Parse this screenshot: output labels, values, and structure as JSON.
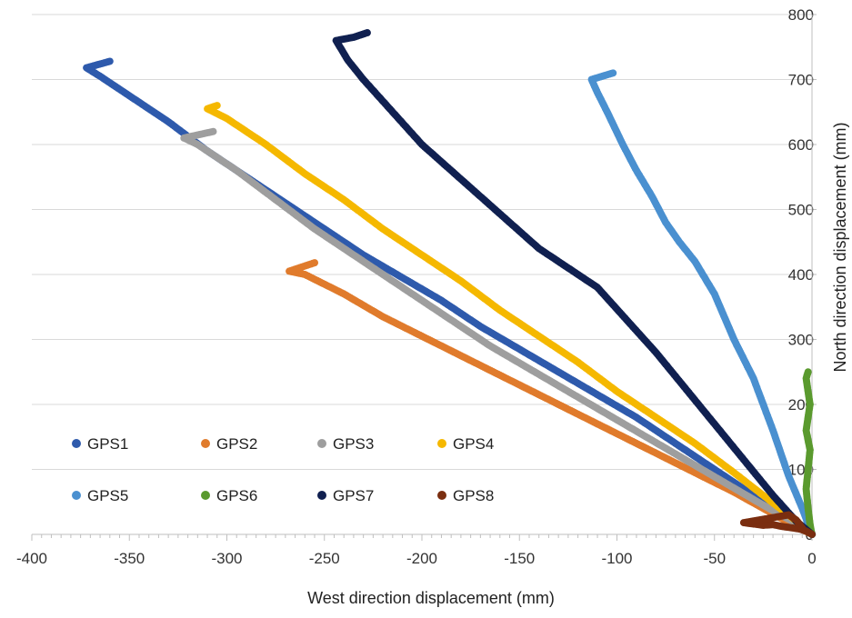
{
  "chart_data": {
    "type": "scatter",
    "xlabel": "West direction displacement (mm)",
    "ylabel": "North direction displacement (mm)",
    "xlim": [
      -400,
      0
    ],
    "ylim": [
      0,
      800
    ],
    "x_ticks": [
      -400,
      -350,
      -300,
      -250,
      -200,
      -150,
      -100,
      -50,
      0
    ],
    "y_ticks": [
      0,
      100,
      200,
      300,
      400,
      500,
      600,
      700,
      800
    ],
    "x_tick_labels": [
      "-400",
      "-350",
      "-300",
      "-250",
      "-200",
      "-150",
      "-100",
      "-50",
      "0"
    ],
    "y_tick_labels": [
      "0",
      "100",
      "200",
      "300",
      "400",
      "500",
      "600",
      "700",
      "800"
    ],
    "y_axis_position": "right",
    "grid": "horizontal",
    "legend_position": "lower-left, inside plot",
    "series": [
      {
        "name": "GPS1",
        "color": "#2E5AAC",
        "x": [
          0,
          -10,
          -20,
          -35,
          -50,
          -70,
          -90,
          -110,
          -130,
          -150,
          -170,
          -190,
          -210,
          -230,
          -250,
          -270,
          -290,
          -310,
          -330,
          -350,
          -365,
          -372,
          -360
        ],
        "y": [
          0,
          20,
          40,
          70,
          100,
          140,
          180,
          215,
          250,
          285,
          320,
          360,
          395,
          430,
          470,
          510,
          550,
          590,
          635,
          675,
          705,
          718,
          728
        ]
      },
      {
        "name": "GPS2",
        "color": "#E07B2C",
        "x": [
          0,
          -10,
          -25,
          -40,
          -60,
          -80,
          -100,
          -120,
          -140,
          -160,
          -180,
          -200,
          -220,
          -240,
          -260,
          -268,
          -255
        ],
        "y": [
          0,
          15,
          40,
          65,
          95,
          125,
          155,
          185,
          215,
          245,
          275,
          305,
          335,
          370,
          400,
          405,
          418
        ]
      },
      {
        "name": "GPS3",
        "color": "#9E9E9E",
        "x": [
          0,
          -10,
          -25,
          -45,
          -65,
          -85,
          -105,
          -125,
          -145,
          -165,
          -180,
          -195,
          -215,
          -235,
          -255,
          -275,
          -295,
          -315,
          -322,
          -307
        ],
        "y": [
          0,
          20,
          45,
          80,
          115,
          150,
          185,
          220,
          255,
          290,
          320,
          350,
          390,
          430,
          470,
          515,
          560,
          600,
          610,
          620
        ]
      },
      {
        "name": "GPS4",
        "color": "#F5B800",
        "x": [
          0,
          -10,
          -25,
          -40,
          -60,
          -80,
          -100,
          -120,
          -140,
          -160,
          -180,
          -200,
          -220,
          -240,
          -260,
          -280,
          -300,
          -310,
          -305
        ],
        "y": [
          0,
          25,
          60,
          95,
          140,
          180,
          220,
          265,
          305,
          345,
          390,
          430,
          470,
          515,
          555,
          600,
          640,
          655,
          660
        ]
      },
      {
        "name": "GPS5",
        "color": "#4A90D0",
        "x": [
          0,
          -5,
          -12,
          -20,
          -30,
          -40,
          -50,
          -60,
          -68,
          -75,
          -82,
          -90,
          -97,
          -105,
          -110,
          -113,
          -102
        ],
        "y": [
          0,
          40,
          90,
          160,
          240,
          300,
          370,
          420,
          450,
          480,
          520,
          560,
          600,
          650,
          680,
          700,
          710
        ]
      },
      {
        "name": "GPS6",
        "color": "#5A9A2E",
        "x": [
          0,
          -1,
          -2,
          -3,
          -2,
          -1,
          -3,
          -2,
          -1,
          -2,
          -3,
          -2
        ],
        "y": [
          0,
          15,
          40,
          70,
          100,
          130,
          160,
          180,
          200,
          220,
          240,
          250
        ]
      },
      {
        "name": "GPS7",
        "color": "#102050",
        "x": [
          0,
          -8,
          -20,
          -35,
          -50,
          -65,
          -80,
          -95,
          -110,
          -125,
          -140,
          -155,
          -170,
          -185,
          -200,
          -215,
          -230,
          -238,
          -244,
          -235,
          -228
        ],
        "y": [
          0,
          20,
          60,
          115,
          170,
          225,
          280,
          330,
          380,
          410,
          440,
          480,
          520,
          560,
          600,
          650,
          700,
          730,
          760,
          765,
          772
        ]
      },
      {
        "name": "GPS8",
        "color": "#7A2E10",
        "x": [
          0,
          -3,
          -6,
          -10,
          -15,
          -20,
          -25,
          -30,
          -35,
          -12,
          -8,
          -5
        ],
        "y": [
          0,
          5,
          8,
          10,
          12,
          15,
          14,
          16,
          18,
          30,
          22,
          10
        ]
      }
    ]
  }
}
